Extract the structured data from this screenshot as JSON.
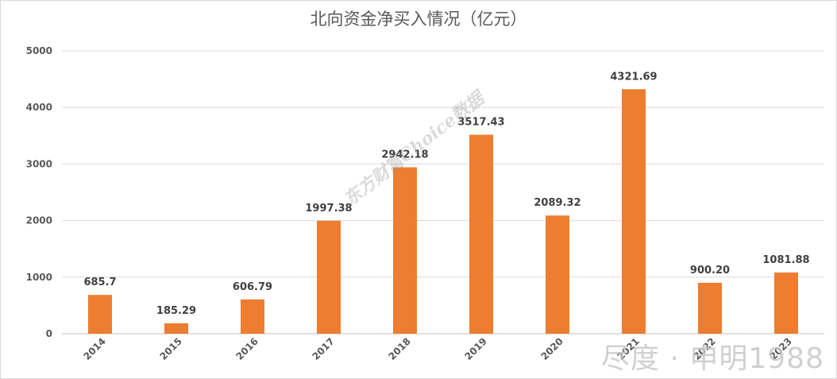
{
  "chart_data": {
    "type": "bar",
    "title": "北向资金净买入情况（亿元）",
    "categories": [
      "2014",
      "2015",
      "2016",
      "2017",
      "2018",
      "2019",
      "2020",
      "2021",
      "2022",
      "2023"
    ],
    "values": [
      685.7,
      185.29,
      606.79,
      1997.38,
      2942.18,
      3517.43,
      2089.32,
      4321.69,
      900.2,
      1081.88
    ],
    "value_labels": [
      "685.7",
      "185.29",
      "606.79",
      "1997.38",
      "2942.18",
      "3517.43",
      "2089.32",
      "4321.69",
      "900.20",
      "1081.88"
    ],
    "y_ticks": [
      0,
      1000,
      2000,
      3000,
      4000,
      5000
    ],
    "ylim": [
      0,
      5000
    ],
    "xlabel": "",
    "ylabel": "",
    "grid": true,
    "bar_color": "#ED7D31"
  },
  "watermarks": {
    "diagonal": "东方财富Choice数据",
    "corner": "尽度 · 申明1988"
  }
}
